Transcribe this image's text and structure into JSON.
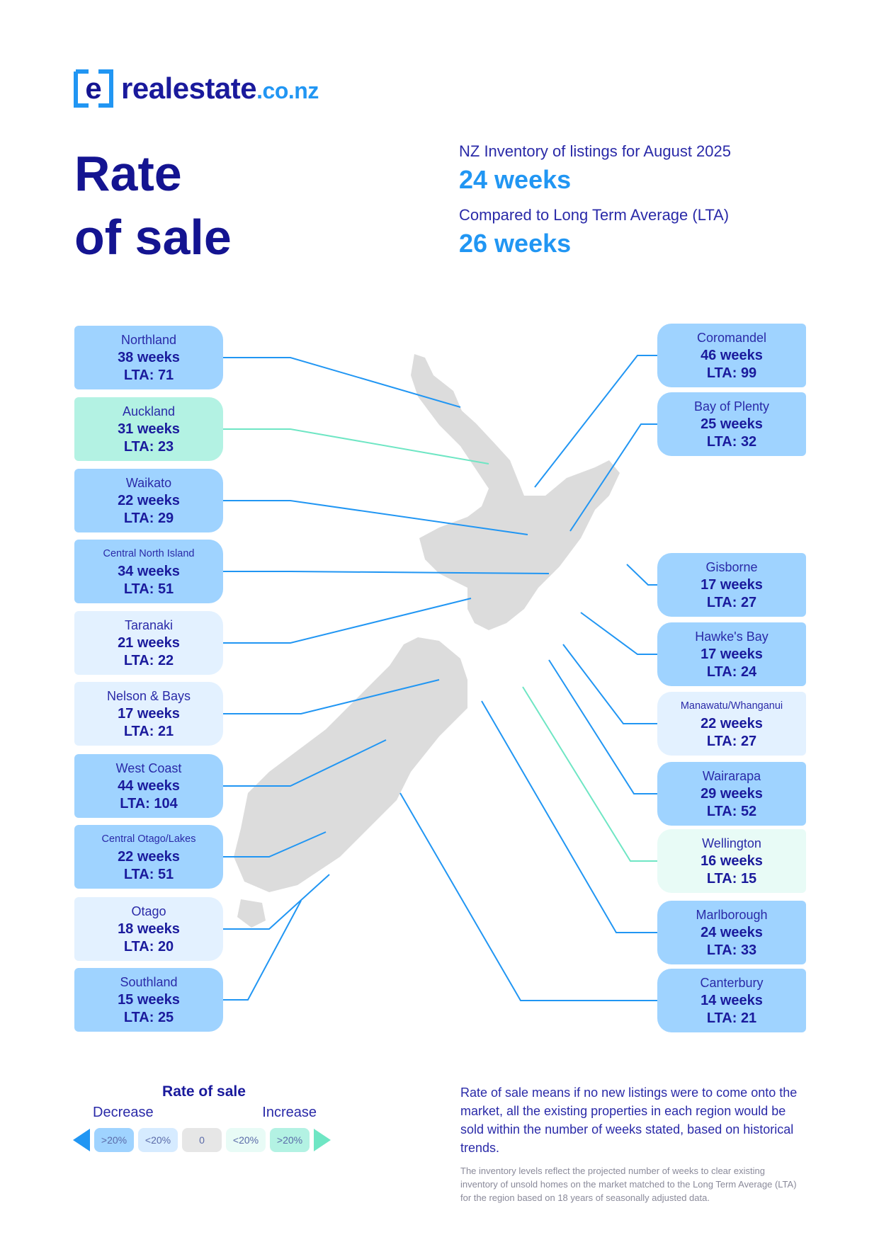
{
  "brand": {
    "logo_letter": "e",
    "name": "realestate",
    "tld": ".co.nz"
  },
  "title": {
    "line1": "Rate",
    "line2": "of sale"
  },
  "stats": {
    "inventory_label": "NZ Inventory of listings for August 2025",
    "inventory_value": "24 weeks",
    "lta_label": "Compared to Long Term Average (LTA)",
    "lta_value": "26 weeks"
  },
  "regions_left": [
    {
      "name": "Northland",
      "weeks": "38 weeks",
      "lta": "LTA: 71",
      "category": "decrease-20"
    },
    {
      "name": "Auckland",
      "weeks": "31 weeks",
      "lta": "LTA: 23",
      "category": "increase-20"
    },
    {
      "name": "Waikato",
      "weeks": "22 weeks",
      "lta": "LTA: 29",
      "category": "decrease-20"
    },
    {
      "name": "Central North Island",
      "weeks": "34 weeks",
      "lta": "LTA: 51",
      "category": "decrease-20"
    },
    {
      "name": "Taranaki",
      "weeks": "21 weeks",
      "lta": "LTA: 22",
      "category": "decrease-under-20"
    },
    {
      "name": "Nelson & Bays",
      "weeks": "17 weeks",
      "lta": "LTA: 21",
      "category": "decrease-under-20"
    },
    {
      "name": "West Coast",
      "weeks": "44 weeks",
      "lta": "LTA: 104",
      "category": "decrease-20"
    },
    {
      "name": "Central Otago/Lakes",
      "weeks": "22 weeks",
      "lta": "LTA: 51",
      "category": "decrease-20"
    },
    {
      "name": "Otago",
      "weeks": "18 weeks",
      "lta": "LTA: 20",
      "category": "decrease-under-20"
    },
    {
      "name": "Southland",
      "weeks": "15 weeks",
      "lta": "LTA: 25",
      "category": "decrease-20"
    }
  ],
  "regions_right": [
    {
      "name": "Coromandel",
      "weeks": "46 weeks",
      "lta": "LTA: 99",
      "category": "decrease-20"
    },
    {
      "name": "Bay of Plenty",
      "weeks": "25 weeks",
      "lta": "LTA: 32",
      "category": "decrease-20"
    },
    {
      "name": "Gisborne",
      "weeks": "17 weeks",
      "lta": "LTA: 27",
      "category": "decrease-20"
    },
    {
      "name": "Hawke's Bay",
      "weeks": "17 weeks",
      "lta": "LTA: 24",
      "category": "decrease-20"
    },
    {
      "name": "Manawatu/Whanganui",
      "weeks": "22 weeks",
      "lta": "LTA: 27",
      "category": "decrease-under-20"
    },
    {
      "name": "Wairarapa",
      "weeks": "29 weeks",
      "lta": "LTA: 52",
      "category": "decrease-20"
    },
    {
      "name": "Wellington",
      "weeks": "16 weeks",
      "lta": "LTA: 15",
      "category": "increase-under-20"
    },
    {
      "name": "Marlborough",
      "weeks": "24 weeks",
      "lta": "LTA: 33",
      "category": "decrease-20"
    },
    {
      "name": "Canterbury",
      "weeks": "14 weeks",
      "lta": "LTA: 21",
      "category": "decrease-20"
    }
  ],
  "legend": {
    "title": "Rate of sale",
    "decrease": "Decrease",
    "increase": "Increase",
    "chips": [
      ">20%",
      "<20%",
      "0",
      "<20%",
      ">20%"
    ]
  },
  "note": {
    "main": "Rate of sale means if no new listings were to come onto the market, all the existing properties in each region would be sold within the number of weeks stated, based on historical trends.",
    "small": "The inventory levels reflect the projected number of weeks to clear existing inventory of unsold homes on the market matched to the Long Term Average (LTA) for the region based on 18 years of seasonally adjusted data."
  },
  "colors": {
    "navy": "#141491",
    "blue": "#2196f3",
    "decrease_20": "#9fd3ff",
    "decrease_under_20": "#e3f1ff",
    "increase_under_20": "#e8fbf6",
    "increase_20": "#b3f2e3",
    "map_land": "#dcdcdc"
  }
}
